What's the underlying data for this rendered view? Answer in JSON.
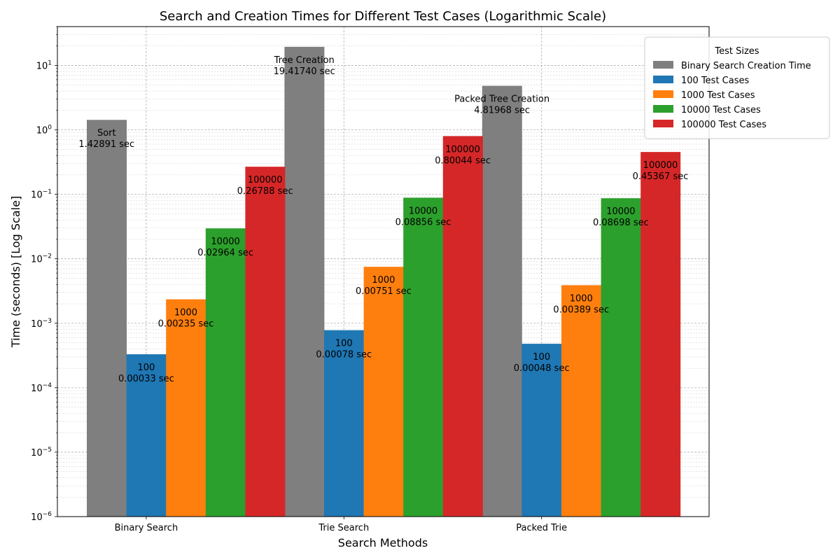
{
  "chart_data": {
    "type": "bar",
    "title": "Search and Creation Times for Different Test Cases (Logarithmic Scale)",
    "xlabel": "Search Methods",
    "ylabel": "Time (seconds) [Log Scale]",
    "yscale": "log",
    "ylim": [
      1e-06,
      40
    ],
    "grid": true,
    "categories": [
      "Binary Search",
      "Trie Search",
      "Packed Trie"
    ],
    "y_ticks": [
      {
        "value": 1e-06,
        "base": "10",
        "exp": "−6"
      },
      {
        "value": 1e-05,
        "base": "10",
        "exp": "−5"
      },
      {
        "value": 0.0001,
        "base": "10",
        "exp": "−4"
      },
      {
        "value": 0.001,
        "base": "10",
        "exp": "−3"
      },
      {
        "value": 0.01,
        "base": "10",
        "exp": "−2"
      },
      {
        "value": 0.1,
        "base": "10",
        "exp": "−1"
      },
      {
        "value": 1,
        "base": "10",
        "exp": "0"
      },
      {
        "value": 10,
        "base": "10",
        "exp": "1"
      }
    ],
    "legend": {
      "title": "Test Sizes",
      "placement": "top-right, outside"
    },
    "series": [
      {
        "name": "Binary Search Creation Time",
        "color": "#7f7f7f",
        "values": [
          1.42891,
          19.4174,
          4.81968
        ],
        "labels": [
          [
            "Sort",
            "1.42891 sec"
          ],
          [
            "Tree Creation",
            "19.41740 sec"
          ],
          [
            "Packed Tree Creation",
            "4.81968 sec"
          ]
        ]
      },
      {
        "name": "100 Test Cases",
        "color": "#1f77b4",
        "values": [
          0.00033,
          0.00078,
          0.00048
        ],
        "labels": [
          [
            "100",
            "0.00033 sec"
          ],
          [
            "100",
            "0.00078 sec"
          ],
          [
            "100",
            "0.00048 sec"
          ]
        ]
      },
      {
        "name": "1000 Test Cases",
        "color": "#ff7f0e",
        "values": [
          0.00235,
          0.00751,
          0.00389
        ],
        "labels": [
          [
            "1000",
            "0.00235 sec"
          ],
          [
            "1000",
            "0.00751 sec"
          ],
          [
            "1000",
            "0.00389 sec"
          ]
        ]
      },
      {
        "name": "10000 Test Cases",
        "color": "#2ca02c",
        "values": [
          0.02964,
          0.08856,
          0.08698
        ],
        "labels": [
          [
            "10000",
            "0.02964 sec"
          ],
          [
            "10000",
            "0.08856 sec"
          ],
          [
            "10000",
            "0.08698 sec"
          ]
        ]
      },
      {
        "name": "100000 Test Cases",
        "color": "#d62728",
        "values": [
          0.26788,
          0.80044,
          0.45367
        ],
        "labels": [
          [
            "100000",
            "0.26788 sec"
          ],
          [
            "100000",
            "0.80044 sec"
          ],
          [
            "100000",
            "0.45367 sec"
          ]
        ]
      }
    ]
  }
}
